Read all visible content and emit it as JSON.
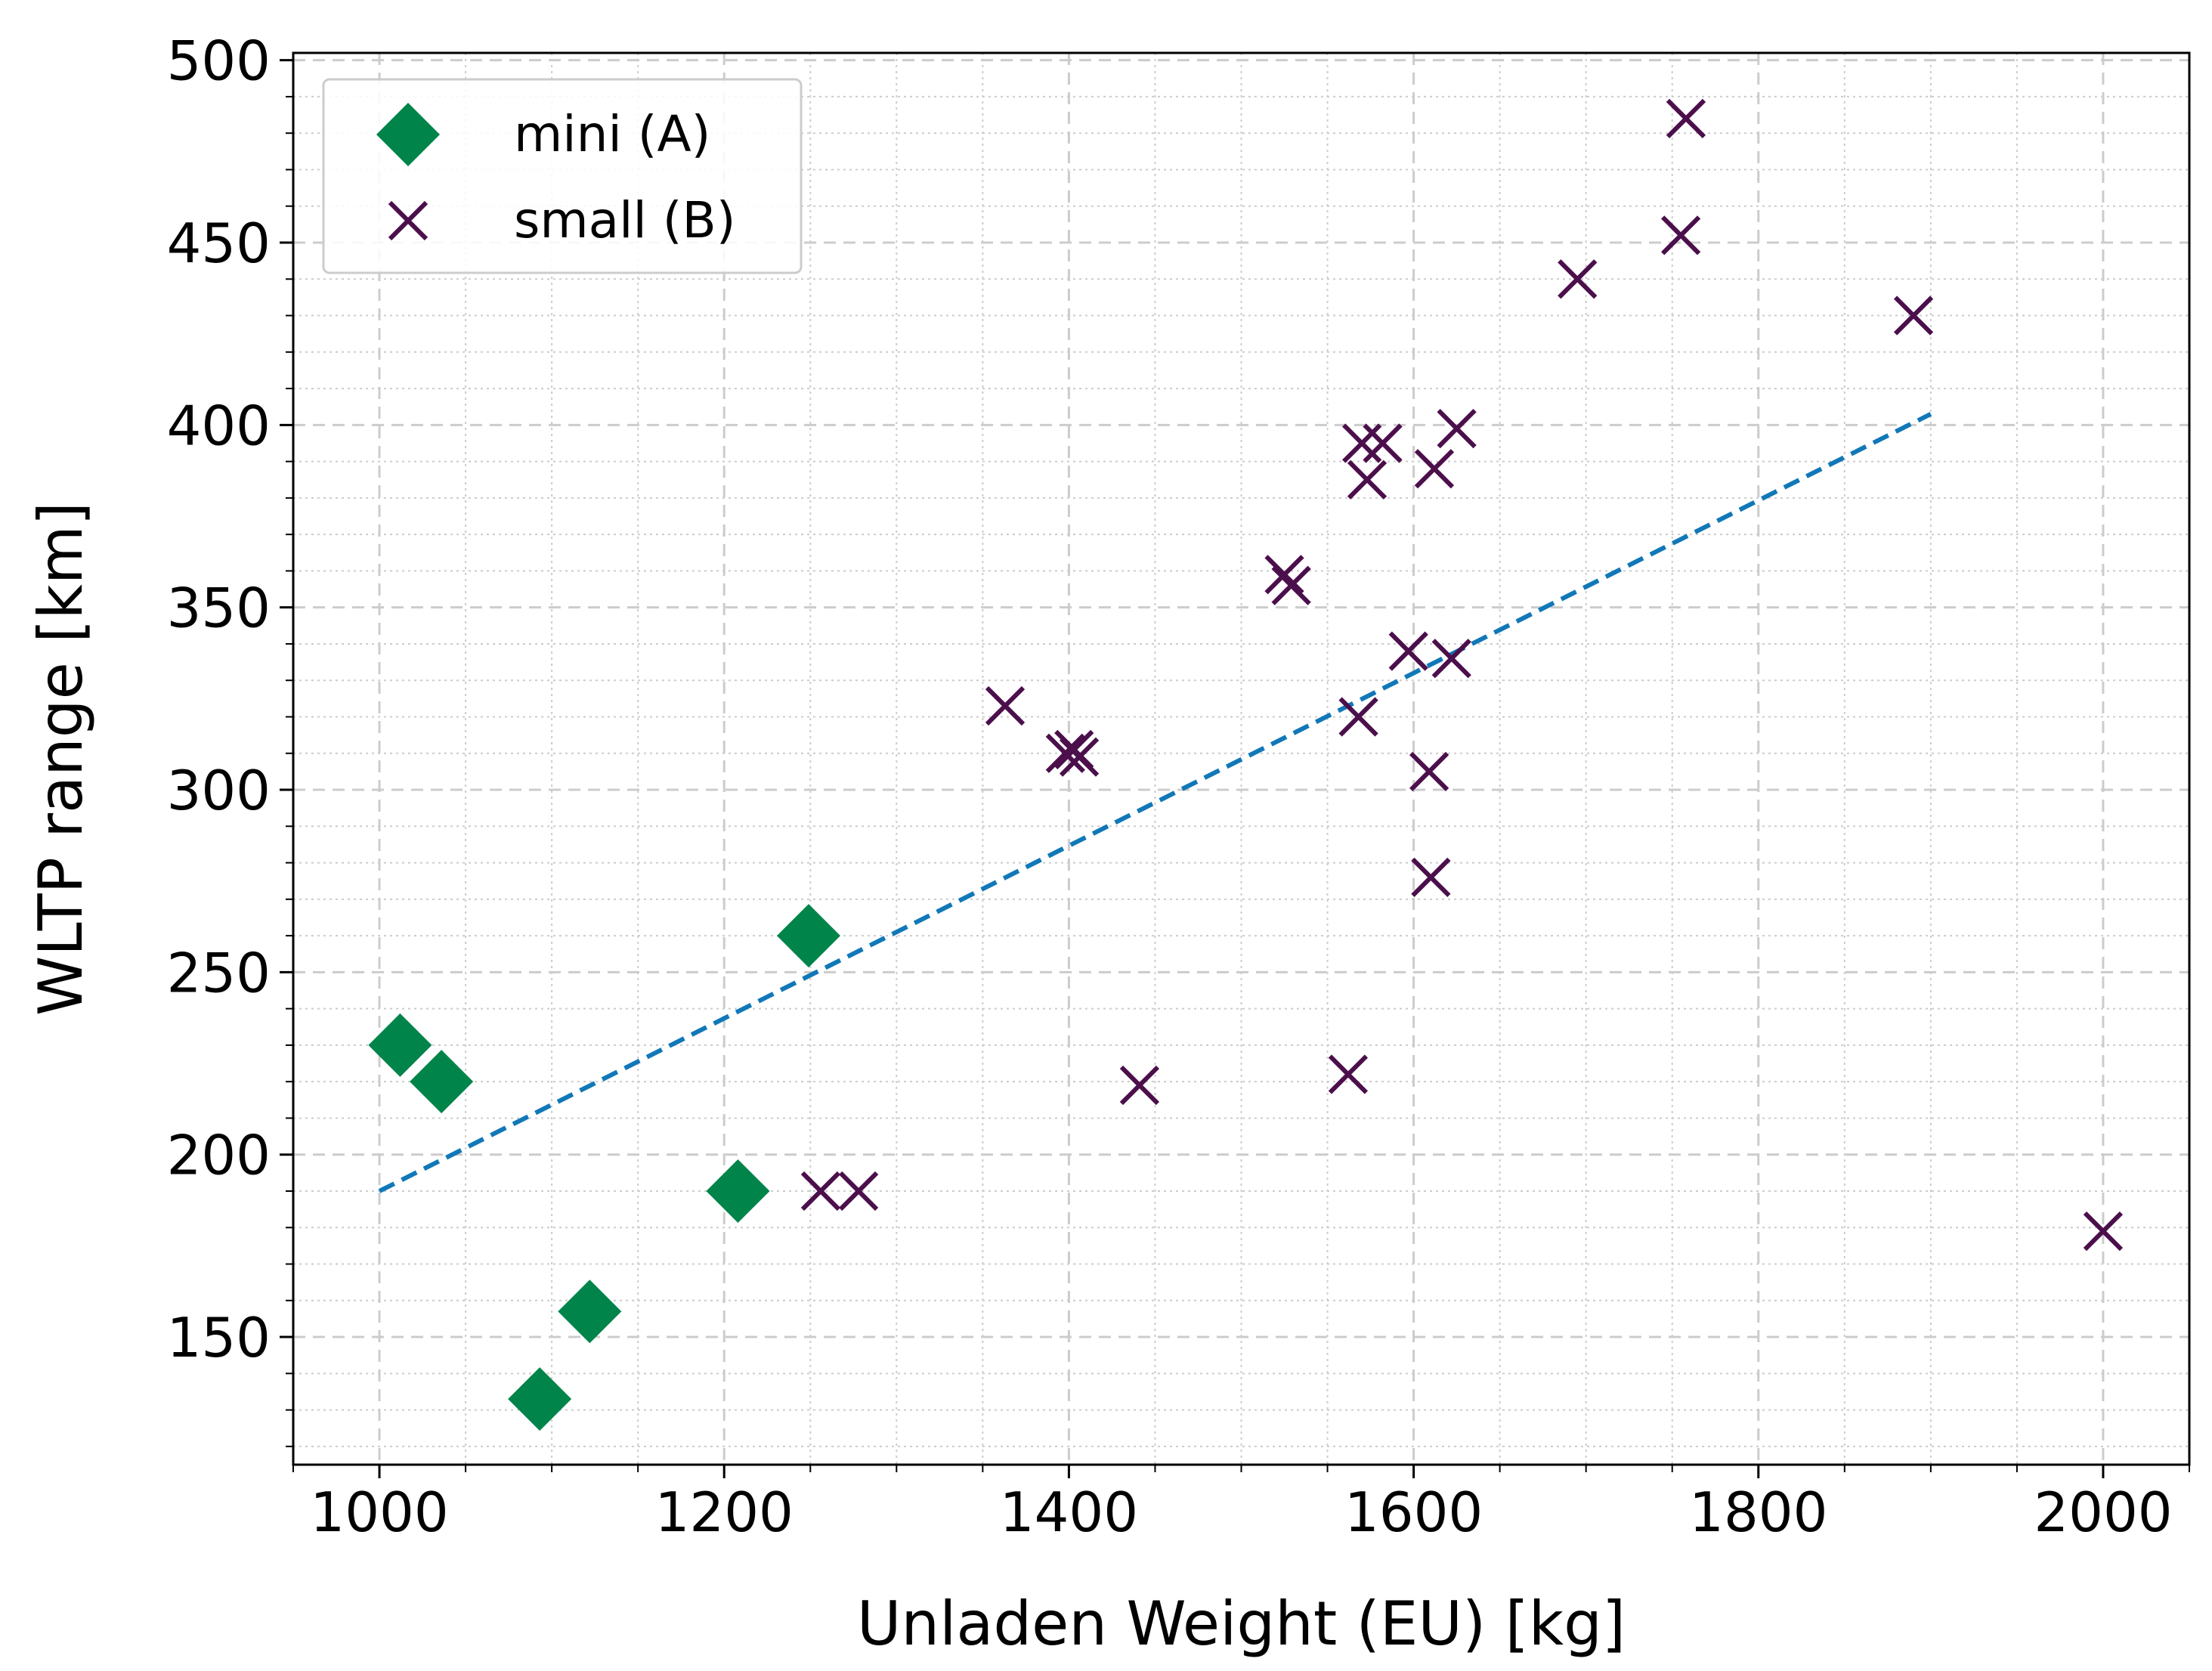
{
  "chart_data": {
    "type": "scatter",
    "title": "",
    "xlabel": "Unladen Weight (EU) [kg]",
    "ylabel": "WLTP range [km]",
    "xlim": [
      950,
      2050
    ],
    "ylim": [
      115,
      502
    ],
    "xticks": [
      1000,
      1200,
      1400,
      1600,
      1800,
      2000
    ],
    "yticks": [
      150,
      200,
      250,
      300,
      350,
      400,
      450,
      500
    ],
    "grid": true,
    "legend_position": "top-left",
    "colors": {
      "mini": "#00844a",
      "small": "#4b0f4b",
      "trend": "#1178b8",
      "grid": "#cccccc",
      "axes": "#000000"
    },
    "series": [
      {
        "name": "mini (A)",
        "marker": "diamond",
        "points": [
          {
            "x": 1012,
            "y": 230
          },
          {
            "x": 1036,
            "y": 220
          },
          {
            "x": 1093,
            "y": 133
          },
          {
            "x": 1122,
            "y": 157
          },
          {
            "x": 1208,
            "y": 190
          },
          {
            "x": 1249,
            "y": 260
          }
        ]
      },
      {
        "name": "small (B)",
        "marker": "x",
        "points": [
          {
            "x": 1256,
            "y": 190
          },
          {
            "x": 1278,
            "y": 190
          },
          {
            "x": 1363,
            "y": 323
          },
          {
            "x": 1398,
            "y": 310
          },
          {
            "x": 1403,
            "y": 311
          },
          {
            "x": 1406,
            "y": 309
          },
          {
            "x": 1441,
            "y": 219
          },
          {
            "x": 1525,
            "y": 359
          },
          {
            "x": 1529,
            "y": 356
          },
          {
            "x": 1562,
            "y": 222
          },
          {
            "x": 1568,
            "y": 320
          },
          {
            "x": 1570,
            "y": 395
          },
          {
            "x": 1573,
            "y": 385
          },
          {
            "x": 1582,
            "y": 395
          },
          {
            "x": 1597,
            "y": 338
          },
          {
            "x": 1609,
            "y": 305
          },
          {
            "x": 1610,
            "y": 276
          },
          {
            "x": 1612,
            "y": 388
          },
          {
            "x": 1622,
            "y": 336
          },
          {
            "x": 1625,
            "y": 399
          },
          {
            "x": 1695,
            "y": 440
          },
          {
            "x": 1755,
            "y": 452
          },
          {
            "x": 1758,
            "y": 484
          },
          {
            "x": 1890,
            "y": 430
          },
          {
            "x": 2000,
            "y": 179
          }
        ]
      }
    ],
    "trendline": {
      "style": "dashed",
      "points": [
        {
          "x": 1000,
          "y": 190
        },
        {
          "x": 1900,
          "y": 403
        }
      ]
    }
  }
}
